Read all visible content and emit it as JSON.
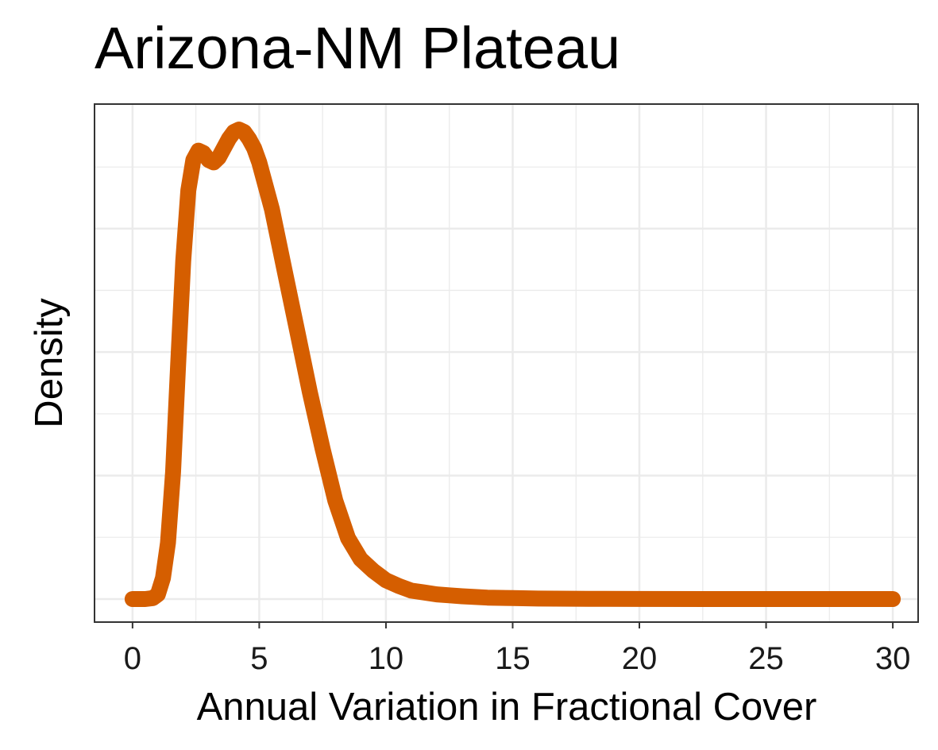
{
  "chart_data": {
    "type": "line",
    "title": "Arizona-NM Plateau",
    "xlabel": "Annual Variation in Fractional Cover",
    "ylabel": "Density",
    "xlim": [
      -1.5,
      31.0
    ],
    "x_ticks": [
      0,
      5,
      10,
      15,
      20,
      25,
      30
    ],
    "x_tick_labels": [
      "0",
      "5",
      "10",
      "15",
      "20",
      "25",
      "30"
    ],
    "y_tick_labels_shown": false,
    "grid": true,
    "legend": "none",
    "series": [
      {
        "color": "#d55e00",
        "x": [
          0,
          0.5,
          0.8,
          1.0,
          1.2,
          1.4,
          1.6,
          1.8,
          2.0,
          2.2,
          2.4,
          2.6,
          2.8,
          3.0,
          3.2,
          3.4,
          3.6,
          3.8,
          4.0,
          4.2,
          4.4,
          4.6,
          4.8,
          5.0,
          5.2,
          5.5,
          6.0,
          6.5,
          7.0,
          7.5,
          8.0,
          8.5,
          9.0,
          9.5,
          10.0,
          10.5,
          11.0,
          11.5,
          12.0,
          12.5,
          13.0,
          14.0,
          15.0,
          16.0,
          18.0,
          20.0,
          25.0,
          30.0
        ],
        "y": [
          0.0,
          0.0,
          0.002,
          0.01,
          0.045,
          0.12,
          0.27,
          0.5,
          0.72,
          0.87,
          0.935,
          0.955,
          0.95,
          0.935,
          0.93,
          0.94,
          0.96,
          0.98,
          0.995,
          1.0,
          0.995,
          0.98,
          0.96,
          0.93,
          0.89,
          0.83,
          0.7,
          0.57,
          0.44,
          0.32,
          0.21,
          0.13,
          0.085,
          0.06,
          0.04,
          0.028,
          0.018,
          0.014,
          0.01,
          0.008,
          0.006,
          0.003,
          0.002,
          0.001,
          0.0005,
          0.0002,
          0.0,
          0.0
        ]
      }
    ]
  }
}
